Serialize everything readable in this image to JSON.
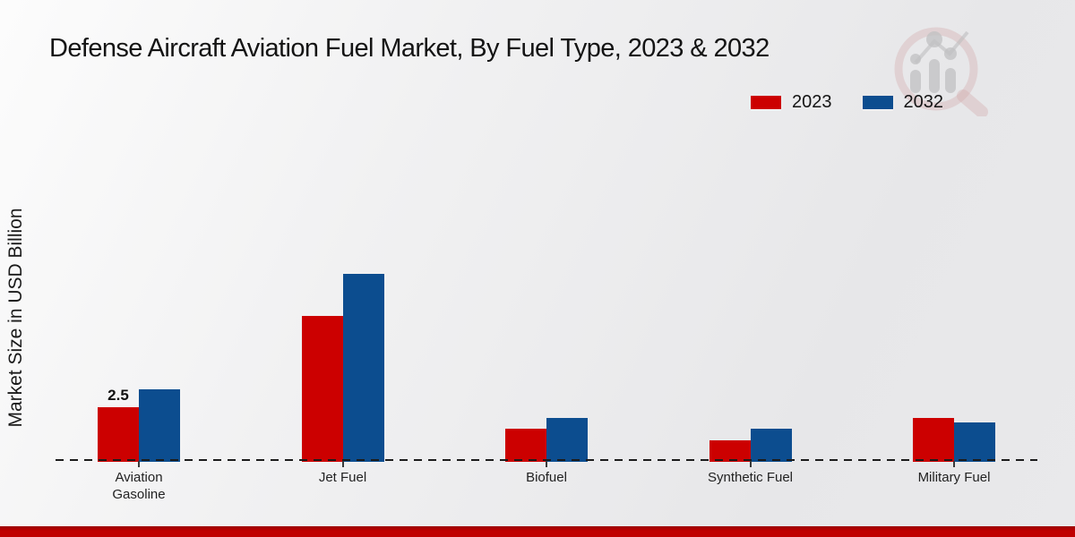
{
  "title": "Defense Aircraft Aviation Fuel Market, By Fuel Type, 2023 & 2032",
  "y_axis_label": "Market Size in USD Billion",
  "legend": [
    {
      "label": "2023",
      "color": "#cc0000"
    },
    {
      "label": "2032",
      "color": "#0c4d8f"
    }
  ],
  "colors": {
    "series_2023": "#cc0000",
    "series_2032": "#0c4d8f",
    "footer_accent": "#c00000",
    "baseline": "#1c1c1c"
  },
  "watermark_icon": "magnifier-bar-chart-logo",
  "chart_data": {
    "type": "bar",
    "title": "Defense Aircraft Aviation Fuel Market, By Fuel Type, 2023 & 2032",
    "xlabel": "",
    "ylabel": "Market Size in USD Billion",
    "categories": [
      "Aviation Gasoline",
      "Jet Fuel",
      "Biofuel",
      "Synthetic Fuel",
      "Military Fuel"
    ],
    "series": [
      {
        "name": "2023",
        "color": "#cc0000",
        "values": [
          2.5,
          6.7,
          1.5,
          1.0,
          2.0
        ]
      },
      {
        "name": "2032",
        "color": "#0c4d8f",
        "values": [
          3.3,
          8.6,
          2.0,
          1.5,
          1.8
        ]
      }
    ],
    "annotations": [
      {
        "category_index": 0,
        "series_index": 0,
        "text": "2.5"
      }
    ],
    "ylim": [
      0,
      10
    ],
    "grid": false,
    "y_ticks_visible": false,
    "legend_position": "top-right",
    "baseline_style": "dashed"
  },
  "footer": {
    "accent_bar": ""
  }
}
